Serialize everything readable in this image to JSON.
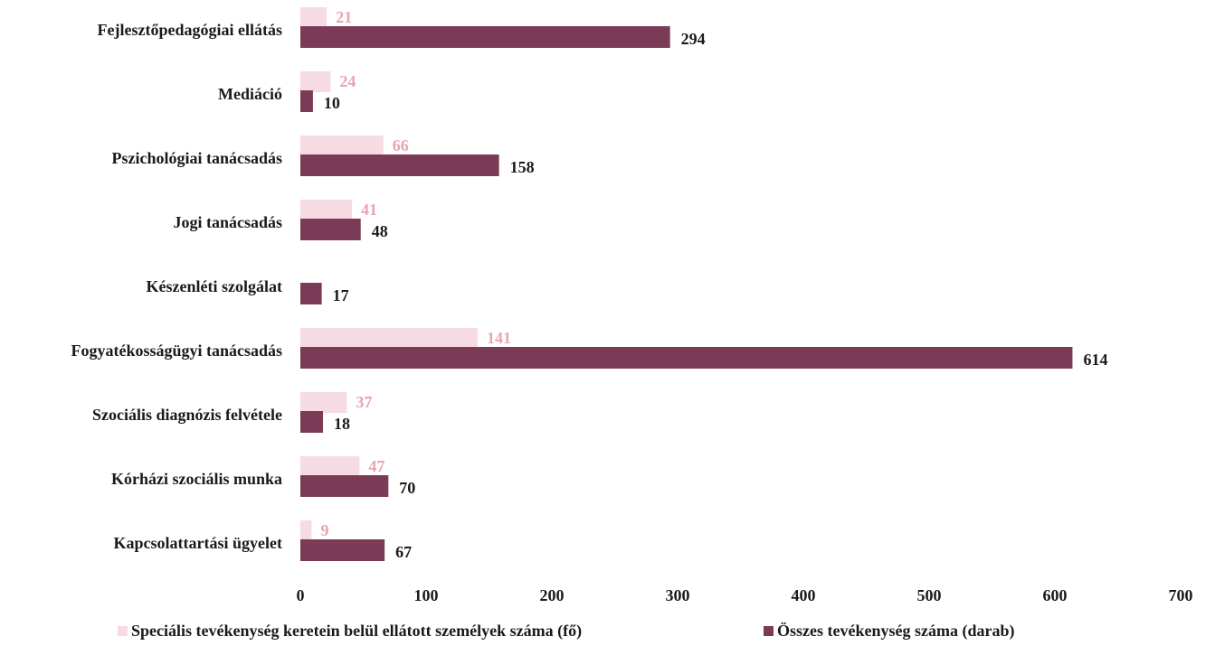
{
  "chart_data": {
    "type": "bar",
    "orientation": "horizontal",
    "categories": [
      "Fejlesztőpedagógiai ellátás",
      "Mediáció",
      "Pszichológiai tanácsadás",
      "Jogi tanácsadás",
      "Készenléti szolgálat",
      "Fogyatékosságügyi tanácsadás",
      "Szociális diagnózis felvétele",
      "Kórházi szociális munka",
      "Kapcsolattartási ügyelet"
    ],
    "series": [
      {
        "name": "Speciális tevékenység keretein belül ellátott személyek száma (fő)",
        "color": "#f7dbe4",
        "label_color": "#e8a3b6",
        "values": [
          21,
          24,
          66,
          41,
          null,
          141,
          37,
          47,
          9
        ]
      },
      {
        "name": "Összes tevékenység száma (darab)",
        "color": "#7b3a55",
        "label_color": "#1a1a1a",
        "values": [
          294,
          10,
          158,
          48,
          17,
          614,
          18,
          70,
          67
        ]
      }
    ],
    "x_ticks": [
      "0",
      "100",
      "200",
      "300",
      "400",
      "500",
      "600",
      "700"
    ],
    "xlim": [
      0,
      700
    ],
    "grid": false,
    "legend_position": "bottom"
  }
}
